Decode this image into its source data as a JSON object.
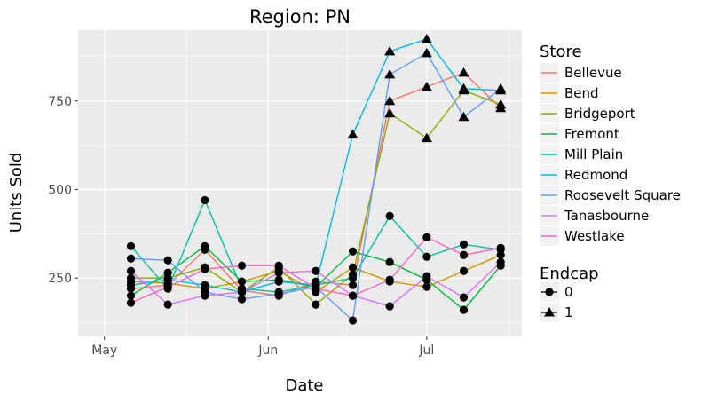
{
  "chart_data": {
    "type": "line",
    "title": "Region: PN",
    "xlabel": "Date",
    "ylabel": "Units Sold",
    "x_ticks": [
      "May",
      "Jun",
      "Jul"
    ],
    "x_tick_dates": [
      "2016-05-01",
      "2016-06-01",
      "2016-07-01"
    ],
    "xlim": [
      "2016-04-26",
      "2016-07-19"
    ],
    "y_ticks": [
      250,
      500,
      750
    ],
    "ylim": [
      85,
      950
    ],
    "grid": true,
    "legend_position": "right",
    "legend_color_title": "Store",
    "legend_shape_title": "Endcap",
    "endcap_labels": [
      "0",
      "1"
    ],
    "dates": [
      "2016-05-06",
      "2016-05-13",
      "2016-05-20",
      "2016-05-27",
      "2016-06-03",
      "2016-06-10",
      "2016-06-17",
      "2016-06-24",
      "2016-07-01",
      "2016-07-08",
      "2016-07-15"
    ],
    "series": [
      {
        "name": "Bellevue",
        "color": "#f8766d",
        "values": [
          220,
          230,
          330,
          215,
          200,
          240,
          230,
          750,
          790,
          830,
          730
        ],
        "endcap": [
          0,
          0,
          0,
          0,
          0,
          0,
          0,
          1,
          1,
          1,
          1
        ]
      },
      {
        "name": "Bend",
        "color": "#d39200",
        "values": [
          240,
          235,
          220,
          240,
          270,
          210,
          280,
          240,
          225,
          270,
          315
        ],
        "endcap": [
          0,
          0,
          0,
          0,
          0,
          0,
          0,
          0,
          0,
          0,
          0
        ]
      },
      {
        "name": "Bridgeport",
        "color": "#93aa00",
        "values": [
          250,
          250,
          280,
          210,
          280,
          175,
          260,
          715,
          645,
          780,
          740
        ],
        "endcap": [
          0,
          0,
          0,
          0,
          0,
          0,
          0,
          1,
          1,
          1,
          1
        ]
      },
      {
        "name": "Fremont",
        "color": "#00ba38",
        "values": [
          200,
          265,
          340,
          240,
          245,
          225,
          325,
          295,
          245,
          160,
          285
        ],
        "endcap": [
          0,
          0,
          0,
          0,
          0,
          0,
          0,
          0,
          0,
          0,
          0
        ]
      },
      {
        "name": "Mill Plain",
        "color": "#00c19f",
        "values": [
          340,
          220,
          470,
          220,
          210,
          230,
          250,
          425,
          310,
          345,
          330
        ],
        "endcap": [
          0,
          0,
          0,
          0,
          0,
          0,
          0,
          0,
          0,
          0,
          0
        ]
      },
      {
        "name": "Redmond",
        "color": "#00b9e3",
        "values": [
          230,
          245,
          230,
          210,
          240,
          230,
          655,
          890,
          925,
          785,
          780
        ],
        "endcap": [
          0,
          0,
          0,
          0,
          0,
          0,
          1,
          1,
          1,
          1,
          1
        ]
      },
      {
        "name": "Roosevelt Square",
        "color": "#619cff",
        "values": [
          305,
          300,
          210,
          190,
          205,
          225,
          130,
          825,
          885,
          705,
          785
        ],
        "endcap": [
          0,
          0,
          0,
          0,
          0,
          0,
          0,
          1,
          1,
          1,
          1
        ]
      },
      {
        "name": "Tanasbourne",
        "color": "#db72fb",
        "values": [
          270,
          175,
          200,
          210,
          265,
          270,
          200,
          170,
          255,
          195,
          295
        ],
        "endcap": [
          0,
          0,
          0,
          0,
          0,
          0,
          0,
          0,
          0,
          0,
          0
        ]
      },
      {
        "name": "Westlake",
        "color": "#ff61c3",
        "values": [
          180,
          225,
          275,
          285,
          285,
          220,
          200,
          245,
          365,
          315,
          335
        ],
        "endcap": [
          0,
          0,
          0,
          0,
          0,
          0,
          0,
          0,
          0,
          0,
          0
        ]
      }
    ]
  }
}
